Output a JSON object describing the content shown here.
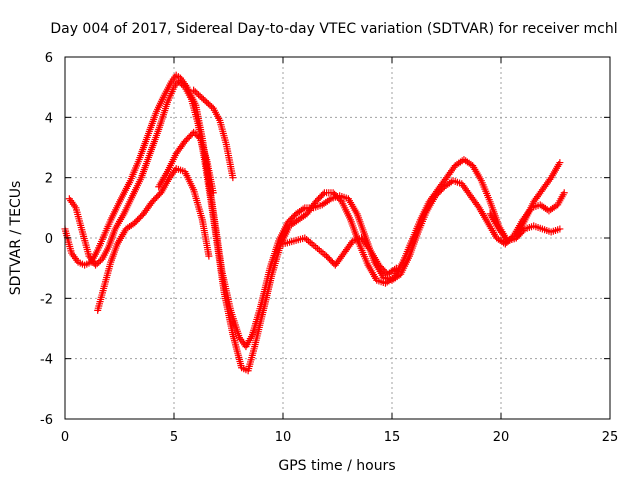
{
  "chart_data": {
    "type": "scatter",
    "title": "Day 004 of 2017, Sidereal Day-to-day VTEC variation (SDTVAR) for receiver mchl",
    "xlabel": "GPS time / hours",
    "ylabel": "SDTVAR / TECUs",
    "xlim": [
      0,
      25
    ],
    "ylim": [
      -6,
      6
    ],
    "xticks": [
      0,
      5,
      10,
      15,
      20,
      25
    ],
    "yticks": [
      -6,
      -4,
      -2,
      0,
      2,
      4,
      6
    ],
    "xtick_labels": [
      "0",
      "5",
      "10",
      "15",
      "20",
      "25"
    ],
    "ytick_labels": [
      "-6",
      "-4",
      "-2",
      "0",
      "2",
      "4",
      "6"
    ],
    "grid": true,
    "marker": "+",
    "color": "#ff0000",
    "series": [
      {
        "x": [
          0.0,
          0.3,
          0.6,
          0.9,
          1.2,
          1.5,
          1.8,
          2.1,
          2.5,
          3.0,
          3.4,
          3.8,
          4.2,
          4.6,
          4.9,
          5.1,
          5.3,
          5.6,
          6.0,
          6.3,
          6.6,
          6.9,
          7.2,
          7.6,
          8.0,
          8.3,
          8.6,
          9.0,
          9.4,
          9.8,
          10.2,
          10.6,
          11.0,
          11.4,
          11.8,
          12.2,
          12.6,
          13.0,
          13.4,
          13.8,
          14.2,
          14.6,
          15.0,
          15.4,
          15.8,
          16.2,
          16.6,
          17.0,
          17.4,
          17.8,
          18.2,
          18.6,
          19.0,
          19.4,
          19.8,
          20.2,
          20.6,
          21.0,
          21.4,
          21.8,
          22.2,
          22.6,
          22.9
        ],
        "y": [
          0.3,
          -0.5,
          -0.8,
          -0.9,
          -0.8,
          -0.4,
          0.1,
          0.6,
          1.2,
          1.9,
          2.6,
          3.4,
          4.2,
          4.8,
          5.2,
          5.4,
          5.3,
          5.0,
          4.4,
          3.3,
          1.9,
          0.4,
          -1.1,
          -2.4,
          -3.3,
          -3.6,
          -3.2,
          -2.2,
          -1.0,
          -0.1,
          0.5,
          0.8,
          1.0,
          1.0,
          1.1,
          1.3,
          1.4,
          1.3,
          0.8,
          0.0,
          -0.8,
          -1.3,
          -1.4,
          -1.2,
          -0.6,
          0.2,
          0.9,
          1.4,
          1.7,
          1.9,
          1.8,
          1.4,
          1.0,
          0.5,
          0.0,
          -0.2,
          0.1,
          0.6,
          1.0,
          1.1,
          0.9,
          1.1,
          1.5
        ]
      },
      {
        "x": [
          0.2,
          0.5,
          0.8,
          1.1,
          1.4,
          1.7,
          2.0,
          2.3,
          2.7,
          3.1,
          3.5,
          3.9,
          4.3,
          4.7,
          5.0,
          5.2,
          5.5,
          5.8,
          6.1,
          6.4,
          6.7,
          7.0,
          7.3,
          7.7,
          8.1,
          8.4,
          8.7,
          9.1,
          9.5,
          9.9,
          10.3,
          10.7,
          11.1,
          11.5,
          11.9,
          12.3,
          12.7,
          13.1,
          13.5,
          13.9,
          14.3,
          14.7,
          15.1,
          15.5,
          15.9,
          16.3,
          16.7,
          17.1,
          17.5,
          17.9,
          18.3,
          18.7,
          19.1,
          19.5,
          19.9,
          20.3,
          20.7,
          21.1,
          21.5,
          21.9,
          22.3,
          22.7
        ],
        "y": [
          1.3,
          1.0,
          0.2,
          -0.6,
          -0.9,
          -0.7,
          -0.3,
          0.3,
          0.8,
          1.4,
          2.0,
          2.8,
          3.6,
          4.5,
          5.0,
          5.2,
          5.0,
          4.6,
          3.8,
          2.6,
          1.2,
          -0.3,
          -1.8,
          -3.2,
          -4.3,
          -4.4,
          -3.6,
          -2.4,
          -1.2,
          -0.2,
          0.4,
          0.6,
          0.8,
          1.2,
          1.5,
          1.5,
          1.2,
          0.6,
          -0.2,
          -0.9,
          -1.4,
          -1.5,
          -1.3,
          -0.8,
          -0.1,
          0.6,
          1.2,
          1.6,
          2.0,
          2.4,
          2.6,
          2.4,
          1.9,
          1.2,
          0.4,
          -0.1,
          0.0,
          0.6,
          1.2,
          1.6,
          2.0,
          2.5
        ]
      },
      {
        "x": [
          1.5,
          1.8,
          2.1,
          2.4,
          2.8,
          3.2,
          3.6,
          4.0,
          4.4,
          4.8,
          5.1,
          5.5,
          5.9,
          6.3,
          6.6
        ],
        "y": [
          -2.4,
          -1.6,
          -0.8,
          -0.2,
          0.3,
          0.5,
          0.8,
          1.2,
          1.5,
          2.0,
          2.3,
          2.2,
          1.6,
          0.6,
          -0.6
        ]
      },
      {
        "x": [
          4.3,
          4.7,
          5.1,
          5.5,
          5.9,
          6.2,
          6.5,
          6.8
        ],
        "y": [
          1.7,
          2.2,
          2.8,
          3.2,
          3.5,
          3.3,
          2.6,
          1.5
        ]
      },
      {
        "x": [
          10.0,
          10.5,
          11.0,
          11.5,
          12.0,
          12.4,
          12.8,
          13.2,
          13.6,
          14.0,
          14.4,
          14.8,
          15.2
        ],
        "y": [
          -0.2,
          -0.1,
          0.0,
          -0.3,
          -0.6,
          -0.9,
          -0.5,
          -0.1,
          0.0,
          -0.4,
          -0.9,
          -1.2,
          -1.0
        ]
      },
      {
        "x": [
          5.9,
          6.2,
          6.5,
          6.8,
          7.1,
          7.4,
          7.7
        ],
        "y": [
          4.9,
          4.7,
          4.5,
          4.3,
          3.9,
          3.1,
          2.0
        ]
      },
      {
        "x": [
          19.5,
          19.9,
          20.3,
          20.7,
          21.1,
          21.5,
          21.9,
          22.3,
          22.7
        ],
        "y": [
          0.8,
          0.3,
          -0.1,
          0.0,
          0.3,
          0.4,
          0.3,
          0.2,
          0.3
        ]
      }
    ]
  }
}
